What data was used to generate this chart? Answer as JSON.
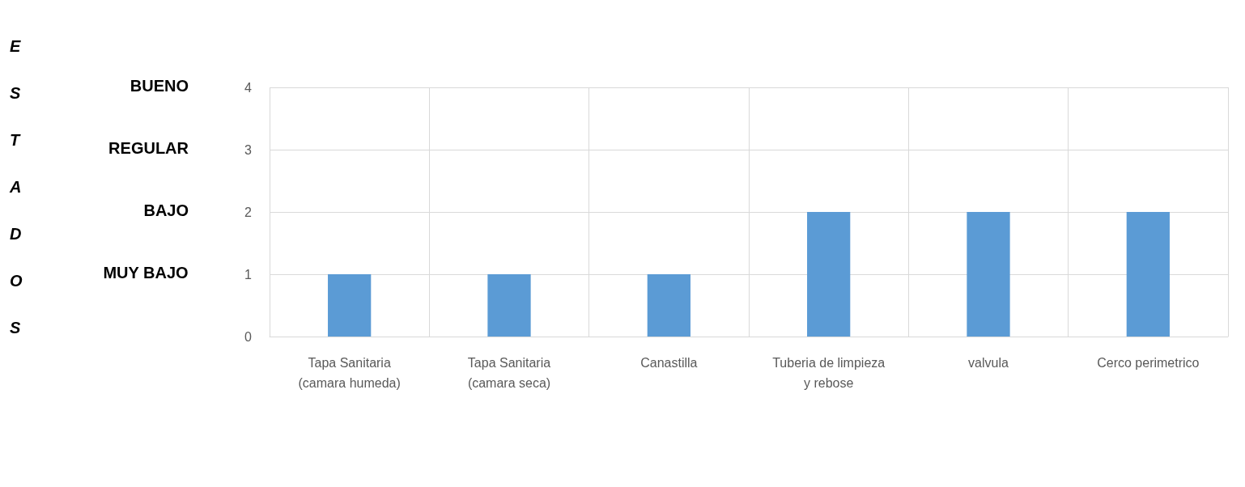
{
  "chart_data": {
    "type": "bar",
    "ylabel": "ESTADOS",
    "categories": [
      "Tapa Sanitaria\n(camara humeda)",
      "Tapa Sanitaria\n(camara seca)",
      "Canastilla",
      "Tuberia de limpieza\ny rebose",
      "valvula",
      "Cerco perimetrico"
    ],
    "values": [
      1,
      1,
      1,
      2,
      2,
      2
    ],
    "color": "#5b9bd5",
    "ylim": [
      0,
      4
    ],
    "yticks": [
      0,
      1,
      2,
      3,
      4
    ],
    "annotations": [
      "MUY BAJO",
      "BAJO",
      "REGULAR",
      "BUENO"
    ],
    "grid": true
  }
}
